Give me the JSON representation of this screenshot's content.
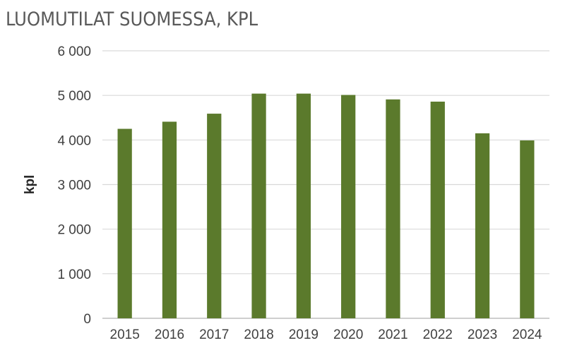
{
  "title": "LUOMUTILAT SUOMESSA, KPL",
  "colors": {
    "bar": "#5b7a2c",
    "grid": "#d9d9d9",
    "axis": "#bfbfbf"
  },
  "chart_data": {
    "type": "bar",
    "title": "LUOMUTILAT SUOMESSA, KPL",
    "xlabel": "",
    "ylabel": "kpl",
    "ylim": [
      0,
      6000
    ],
    "yticks": [
      0,
      1000,
      2000,
      3000,
      4000,
      5000,
      6000
    ],
    "ytick_labels": [
      "0",
      "1 000",
      "2 000",
      "3 000",
      "4 000",
      "5 000",
      "6 000"
    ],
    "grid": true,
    "legend": "none",
    "categories": [
      "2015",
      "2016",
      "2017",
      "2018",
      "2019",
      "2020",
      "2021",
      "2022",
      "2023",
      "2024"
    ],
    "values": [
      4250,
      4410,
      4590,
      5040,
      5040,
      5010,
      4910,
      4860,
      4150,
      3990
    ]
  }
}
